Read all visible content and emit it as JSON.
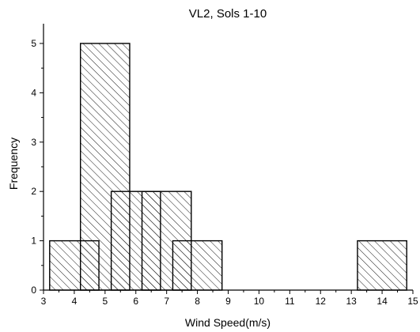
{
  "chart_data": {
    "type": "bar",
    "title": "VL2, Sols 1-10",
    "xlabel": "Wind Speed(m/s)",
    "ylabel": "Frequency",
    "xlim": [
      3,
      15
    ],
    "ylim": [
      0,
      5.4
    ],
    "x_ticks": [
      "3",
      "4",
      "5",
      "6",
      "7",
      "8",
      "9",
      "10",
      "11",
      "12",
      "13",
      "14",
      "15"
    ],
    "y_ticks": [
      "0",
      "1",
      "2",
      "3",
      "4",
      "5"
    ],
    "bars": [
      {
        "x0": 3.2,
        "x1": 4.8,
        "value": 1
      },
      {
        "x0": 4.2,
        "x1": 5.8,
        "value": 5
      },
      {
        "x0": 5.2,
        "x1": 6.8,
        "value": 2
      },
      {
        "x0": 6.2,
        "x1": 7.8,
        "value": 2
      },
      {
        "x0": 7.2,
        "x1": 8.8,
        "value": 1
      },
      {
        "x0": 13.2,
        "x1": 14.8,
        "value": 1
      }
    ],
    "fill": "diagonal-hatch",
    "grid": false,
    "colors": {
      "stroke": "#000000",
      "background": "#ffffff"
    }
  }
}
